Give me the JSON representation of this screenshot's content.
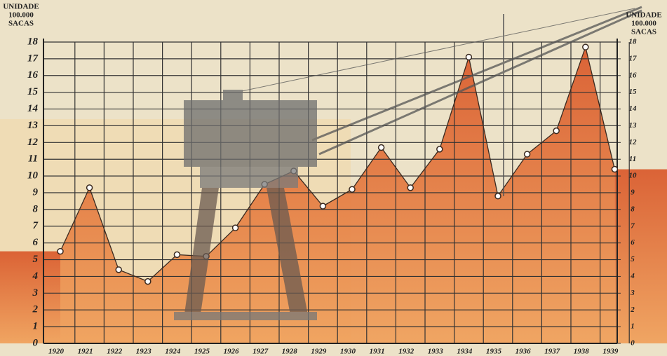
{
  "chart_data": {
    "type": "area",
    "y_label": [
      "UNIDADE",
      "100.000",
      "SACAS"
    ],
    "y2_label": [
      "UNIDADE",
      "100.000",
      "SACAS"
    ],
    "categories": [
      "1920",
      "1921",
      "1922",
      "1923",
      "1924",
      "1925",
      "1926",
      "1927",
      "1928",
      "1929",
      "1930",
      "1931",
      "1932",
      "1933",
      "1934",
      "1935",
      "1936",
      "1937",
      "1938",
      "1939"
    ],
    "values": [
      5.5,
      9.3,
      4.4,
      3.7,
      5.3,
      5.2,
      6.9,
      9.5,
      10.3,
      8.2,
      9.2,
      11.7,
      9.3,
      11.6,
      17.1,
      8.8,
      11.3,
      12.7,
      17.7,
      10.4
    ],
    "color": "#e2703a",
    "ylim": [
      0,
      18
    ],
    "yticks": [
      0,
      1,
      2,
      3,
      4,
      5,
      6,
      7,
      8,
      9,
      10,
      11,
      12,
      13,
      14,
      15,
      16,
      17,
      18
    ],
    "y2lim": [
      0,
      18
    ],
    "y2ticks": [
      0,
      1,
      2,
      3,
      4,
      5,
      6,
      7,
      8,
      9,
      10,
      11,
      12,
      13,
      14,
      15,
      16,
      17,
      18
    ],
    "grid": true
  }
}
